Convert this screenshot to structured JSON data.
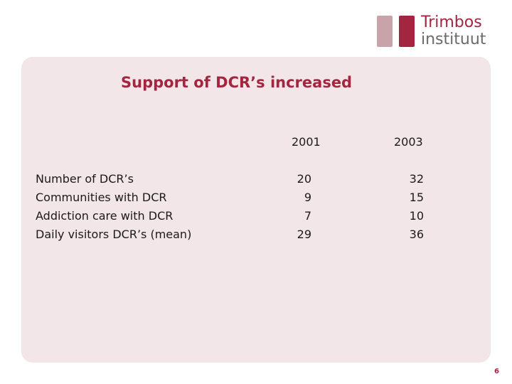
{
  "logo": {
    "line1": "Trimbos",
    "line2": "instituut"
  },
  "title": "Support of DCR’s increased",
  "table": {
    "columns": [
      "2001",
      "2003"
    ],
    "rows": [
      {
        "label": "Number of DCR’s",
        "v2001": "20",
        "v2003": "32"
      },
      {
        "label": "Communities with DCR",
        "v2001": "9",
        "v2003": "15"
      },
      {
        "label": "Addiction care with DCR",
        "v2001": "7",
        "v2003": "10"
      },
      {
        "label": "Daily visitors DCR’s (mean)",
        "v2001": "29",
        "v2003": "36"
      }
    ]
  },
  "page_number": "6",
  "colors": {
    "accent": "#a4253f",
    "panel": "#f2e6e8"
  }
}
